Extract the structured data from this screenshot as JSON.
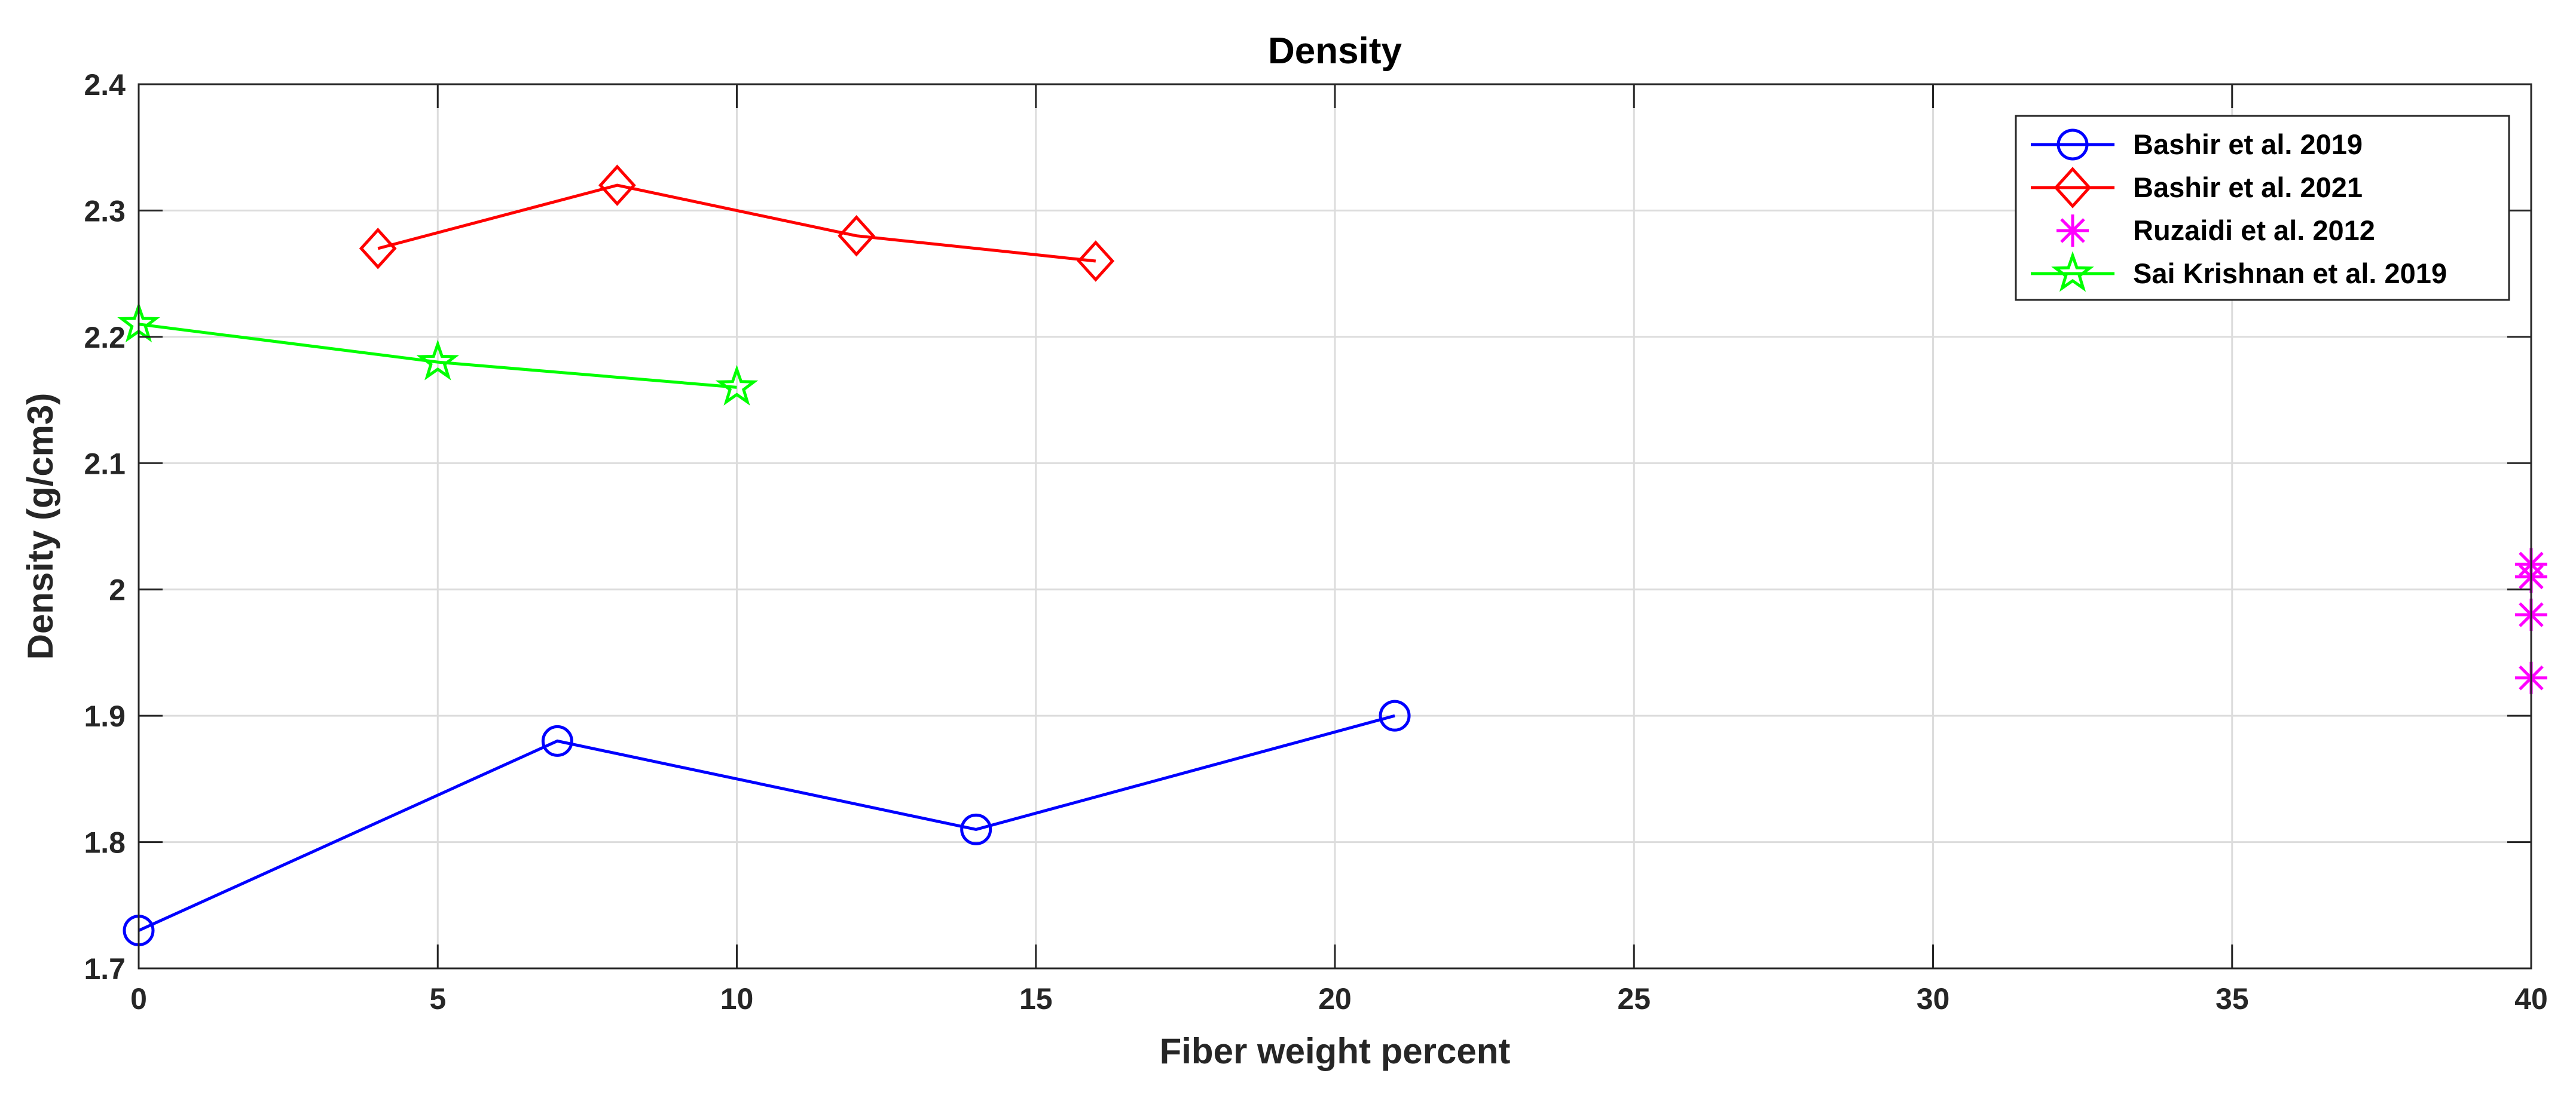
{
  "chart_data": {
    "type": "line",
    "title": "Density",
    "xlabel": "Fiber weight percent",
    "ylabel": "Density (g/cm3)",
    "xlim": [
      0,
      40
    ],
    "ylim": [
      1.7,
      2.4
    ],
    "xticks": [
      0,
      5,
      10,
      15,
      20,
      25,
      30,
      35,
      40
    ],
    "yticks": [
      1.7,
      1.8,
      1.9,
      2.0,
      2.1,
      2.2,
      2.3,
      2.4
    ],
    "xtick_labels": [
      "0",
      "5",
      "10",
      "15",
      "20",
      "25",
      "30",
      "35",
      "40"
    ],
    "ytick_labels": [
      "1.7",
      "1.8",
      "1.9",
      "2",
      "2.1",
      "2.2",
      "2.3",
      "2.4"
    ],
    "grid": true,
    "legend_position": "top-right",
    "series": [
      {
        "name": "Bashir et al. 2019",
        "color": "#0000FF",
        "marker": "circle",
        "line": true,
        "x": [
          0,
          7,
          14,
          21
        ],
        "y": [
          1.73,
          1.88,
          1.81,
          1.9
        ]
      },
      {
        "name": "Bashir et al. 2021",
        "color": "#FF0000",
        "marker": "diamond",
        "line": true,
        "x": [
          4,
          8,
          12,
          16
        ],
        "y": [
          2.27,
          2.32,
          2.28,
          2.26
        ]
      },
      {
        "name": "Ruzaidi et al. 2012",
        "color": "#FF00FF",
        "marker": "asterisk",
        "line": false,
        "x": [
          40,
          40,
          40,
          40
        ],
        "y": [
          1.93,
          1.98,
          2.01,
          2.02
        ]
      },
      {
        "name": "Sai Krishnan et al. 2019",
        "color": "#00FF00",
        "marker": "star",
        "line": true,
        "x": [
          0,
          5,
          10
        ],
        "y": [
          2.21,
          2.18,
          2.16
        ]
      }
    ]
  }
}
